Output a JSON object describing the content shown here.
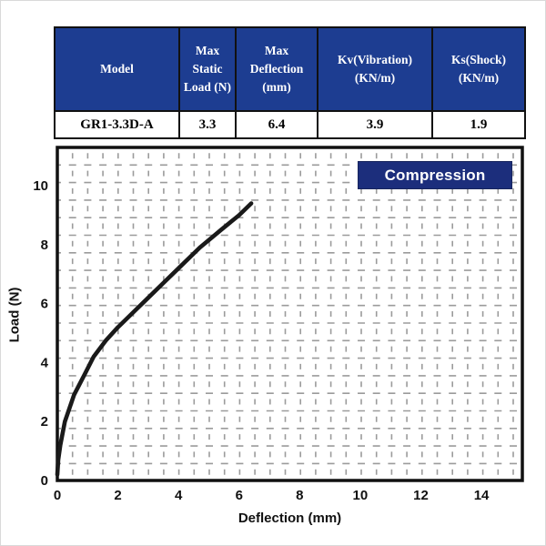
{
  "spec_table": {
    "headers": [
      "Model",
      "Max Static Load (N)",
      "Max Deflection (mm)",
      "Kv(Vibration) (KN/m)",
      "Ks(Shock) (KN/m)"
    ],
    "rows": [
      [
        "GR1-3.3D-A",
        "3.3",
        "6.4",
        "3.9",
        "1.9"
      ]
    ],
    "header_bg": "#1d3d91",
    "header_text_color": "#ffffff",
    "border_color": "#111111"
  },
  "chart_data": {
    "type": "line",
    "title": "",
    "xlabel": "Deflection (mm)",
    "ylabel": "Load (N)",
    "xlim": [
      0,
      15.35
    ],
    "ylim": [
      0,
      11.3
    ],
    "xticks": [
      0,
      2,
      4,
      6,
      8,
      10,
      12,
      14
    ],
    "yticks": [
      0,
      2,
      4,
      6,
      8,
      10
    ],
    "grid": "dashed mesh, ~0.5-unit spacing, both axes, full plot area",
    "legend_label": "Compression",
    "legend_position": "top-right",
    "series": [
      {
        "name": "Compression",
        "x": [
          0,
          0.03,
          0.1,
          0.25,
          0.55,
          0.9,
          1.2,
          1.6,
          2.0,
          2.6,
          3.0,
          3.5,
          4.0,
          4.7,
          5.4,
          6.0,
          6.4
        ],
        "y": [
          0.2,
          0.7,
          1.2,
          2.0,
          2.9,
          3.6,
          4.2,
          4.75,
          5.2,
          5.8,
          6.2,
          6.7,
          7.2,
          7.9,
          8.5,
          9.0,
          9.4
        ]
      }
    ],
    "line_color": "#1a1a1a",
    "grid_color": "#9b9b9b",
    "axis_color": "#111111",
    "tick_text_color": "#111111",
    "badge_bg": "#1c2e7c",
    "badge_text_color": "#ffffff"
  }
}
